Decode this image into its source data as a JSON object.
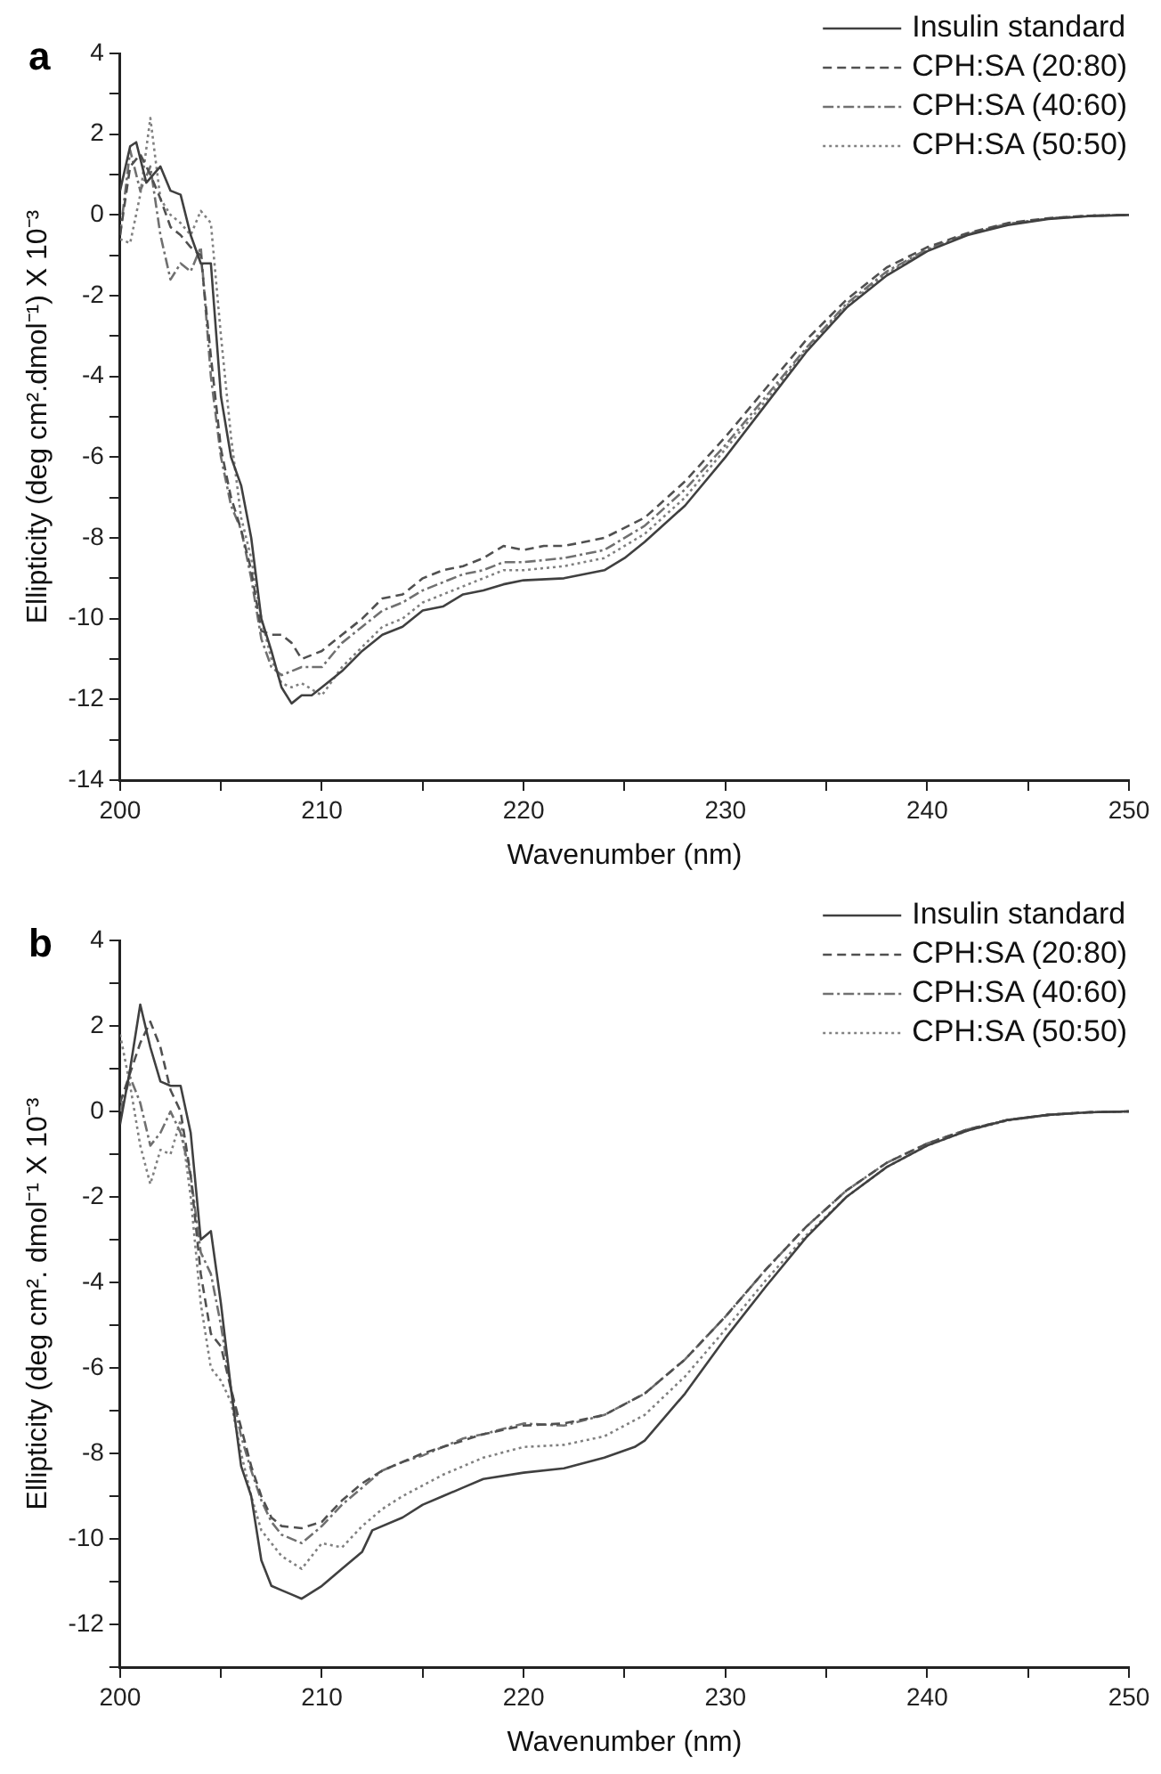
{
  "chart_data": [
    {
      "type": "line",
      "title": "a",
      "xlabel": "Wavenumber (nm)",
      "ylabel": "Ellipticity (deg cm².dmol⁻¹) X 10⁻³",
      "legend": "top right",
      "grid": false,
      "marker": "none",
      "xlim": [
        200,
        250
      ],
      "xticks": [
        200,
        {
          "value": 205,
          "label": null
        },
        210,
        {
          "value": 215,
          "label": null
        },
        220,
        {
          "value": 225,
          "label": null
        },
        230,
        {
          "value": 235,
          "label": null
        },
        240,
        {
          "value": 245,
          "label": null
        },
        250
      ],
      "ylim": [
        -14,
        4
      ],
      "yticks": [
        -14,
        {
          "value": -13,
          "label": null
        },
        -12,
        {
          "value": -11,
          "label": null
        },
        -10,
        {
          "value": -9,
          "label": null
        },
        -8,
        {
          "value": -7,
          "label": null
        },
        -6,
        {
          "value": -5,
          "label": null
        },
        -4,
        {
          "value": -3,
          "label": null
        },
        -2,
        {
          "value": -1,
          "label": null
        },
        0,
        {
          "value": 1,
          "label": null
        },
        2,
        {
          "value": 3,
          "label": null
        },
        4
      ],
      "series": [
        {
          "name": "Insulin standard",
          "color": "#404040",
          "line_style": "solid",
          "x": [
            200,
            200.5,
            200.8,
            201.3,
            202,
            202.5,
            203,
            203.5,
            204,
            204.5,
            205,
            205.5,
            206,
            206.5,
            207,
            207.5,
            208,
            208.5,
            209,
            209.5,
            210,
            211,
            212,
            213,
            214,
            215,
            216,
            217,
            218,
            219,
            220,
            222,
            224,
            225,
            226,
            228,
            230,
            232,
            234,
            236,
            238,
            240,
            242,
            244,
            246,
            248,
            250
          ],
          "values": [
            0.6,
            1.7,
            1.8,
            0.8,
            1.2,
            0.6,
            0.5,
            -0.5,
            -1.2,
            -1.2,
            -4.5,
            -6,
            -6.7,
            -8,
            -10,
            -10.8,
            -11.7,
            -12.1,
            -11.9,
            -11.9,
            -11.7,
            -11.3,
            -10.8,
            -10.4,
            -10.2,
            -9.8,
            -9.7,
            -9.4,
            -9.3,
            -9.15,
            -9.05,
            -9,
            -8.8,
            -8.5,
            -8.1,
            -7.2,
            -6,
            -4.7,
            -3.4,
            -2.3,
            -1.5,
            -0.9,
            -0.5,
            -0.25,
            -0.1,
            -0.03,
            0
          ]
        },
        {
          "name": "CPH:SA (20:80)",
          "color": "#505050",
          "line_style": "dashed",
          "x": [
            200,
            200.5,
            201,
            201.5,
            202,
            202.5,
            203,
            203.5,
            204,
            204.5,
            205,
            205.5,
            206,
            206.5,
            207,
            207.5,
            208,
            208.5,
            209,
            210,
            211,
            212,
            213,
            214,
            215,
            216,
            217,
            218,
            219,
            220,
            221,
            222,
            224,
            226,
            228,
            230,
            232,
            234,
            236,
            238,
            240,
            242,
            244,
            246,
            248,
            250
          ],
          "values": [
            -0.5,
            1.2,
            1.5,
            1,
            0.4,
            -0.3,
            -0.5,
            -0.8,
            -1,
            -3.5,
            -5.8,
            -7,
            -7.8,
            -8.8,
            -10.3,
            -10.4,
            -10.4,
            -10.6,
            -11,
            -10.8,
            -10.4,
            -10,
            -9.5,
            -9.4,
            -9,
            -8.8,
            -8.7,
            -8.5,
            -8.2,
            -8.3,
            -8.2,
            -8.2,
            -8,
            -7.5,
            -6.6,
            -5.5,
            -4.3,
            -3.1,
            -2.1,
            -1.3,
            -0.8,
            -0.45,
            -0.2,
            -0.08,
            -0.02,
            0
          ]
        },
        {
          "name": "CPH:SA (40:60)",
          "color": "#707070",
          "line_style": "dashdot",
          "x": [
            200,
            200.5,
            201,
            201.5,
            202,
            202.5,
            203,
            203.5,
            204,
            204.5,
            205,
            205.5,
            206,
            206.5,
            207,
            207.5,
            208,
            208.5,
            209,
            210,
            211,
            212,
            213,
            214,
            215,
            216,
            217,
            218,
            219,
            220,
            222,
            224,
            226,
            228,
            230,
            232,
            234,
            236,
            238,
            240,
            242,
            244,
            246,
            248,
            250
          ],
          "values": [
            -0.5,
            1.6,
            0.6,
            1.2,
            -0.5,
            -1.6,
            -1.2,
            -1.4,
            -0.8,
            -4,
            -6,
            -7.2,
            -7.8,
            -9,
            -10.5,
            -11.2,
            -11.4,
            -11.3,
            -11.2,
            -11.2,
            -10.6,
            -10.2,
            -9.8,
            -9.6,
            -9.3,
            -9.1,
            -8.9,
            -8.8,
            -8.6,
            -8.6,
            -8.5,
            -8.3,
            -7.7,
            -6.8,
            -5.7,
            -4.5,
            -3.3,
            -2.2,
            -1.4,
            -0.85,
            -0.47,
            -0.22,
            -0.09,
            -0.02,
            0
          ]
        },
        {
          "name": "CPH:SA (50:50)",
          "color": "#808080",
          "line_style": "dotted",
          "x": [
            200,
            200.5,
            201,
            201.5,
            202,
            202.5,
            203,
            203.5,
            204,
            204.5,
            205,
            205.5,
            206,
            206.5,
            207,
            207.5,
            208,
            208.5,
            209,
            210,
            211,
            212,
            213,
            214,
            215,
            216,
            217,
            218,
            219,
            220,
            222,
            224,
            226,
            228,
            230,
            232,
            234,
            236,
            238,
            240,
            242,
            244,
            246,
            248,
            250
          ],
          "values": [
            -0.6,
            -0.7,
            0.5,
            2.4,
            0.4,
            0,
            -0.2,
            -0.5,
            0.1,
            -0.2,
            -3,
            -5.5,
            -7.5,
            -8.5,
            -10,
            -11,
            -11.6,
            -11.7,
            -11.6,
            -11.9,
            -11.2,
            -10.7,
            -10.2,
            -10,
            -9.6,
            -9.4,
            -9.2,
            -9,
            -8.8,
            -8.8,
            -8.7,
            -8.5,
            -7.9,
            -7,
            -5.8,
            -4.6,
            -3.35,
            -2.25,
            -1.45,
            -0.87,
            -0.48,
            -0.23,
            -0.09,
            -0.02,
            0
          ]
        }
      ]
    },
    {
      "type": "line",
      "title": "b",
      "xlabel": "Wavenumber (nm)",
      "ylabel": "Ellipticity (deg cm². dmol⁻¹ X 10⁻³",
      "legend": "top right",
      "grid": false,
      "marker": "none",
      "xlim": [
        200,
        250
      ],
      "xticks": [
        200,
        {
          "value": 205,
          "label": null
        },
        210,
        {
          "value": 215,
          "label": null
        },
        220,
        {
          "value": 225,
          "label": null
        },
        230,
        {
          "value": 235,
          "label": null
        },
        240,
        {
          "value": 245,
          "label": null
        },
        250
      ],
      "ylim": [
        -13,
        4
      ],
      "yticks": [
        {
          "value": -13,
          "label": null
        },
        -12,
        {
          "value": -11,
          "label": null
        },
        -10,
        {
          "value": -9,
          "label": null
        },
        -8,
        {
          "value": -7,
          "label": null
        },
        -6,
        {
          "value": -5,
          "label": null
        },
        -4,
        {
          "value": -3,
          "label": null
        },
        -2,
        {
          "value": -1,
          "label": null
        },
        0,
        {
          "value": 1,
          "label": null
        },
        2,
        {
          "value": 3,
          "label": null
        },
        4
      ],
      "series": [
        {
          "name": "Insulin standard",
          "color": "#404040",
          "line_style": "solid",
          "x": [
            200,
            200.5,
            201,
            201.5,
            202,
            202.5,
            203,
            203.5,
            204,
            204.5,
            205,
            205.5,
            206,
            206.5,
            207,
            207.5,
            208,
            208.5,
            209,
            210,
            211,
            212,
            212.5,
            214,
            215,
            216,
            217,
            218,
            220,
            222,
            224,
            225.5,
            226,
            228,
            230,
            232,
            234,
            236,
            238,
            240,
            242,
            244,
            246,
            248,
            250
          ],
          "values": [
            -0.3,
            1,
            2.5,
            1.5,
            0.7,
            0.6,
            0.6,
            -0.5,
            -3,
            -2.8,
            -4.5,
            -6.5,
            -8.3,
            -9,
            -10.5,
            -11.1,
            -11.2,
            -11.3,
            -11.4,
            -11.1,
            -10.7,
            -10.3,
            -9.8,
            -9.5,
            -9.2,
            -9,
            -8.8,
            -8.6,
            -8.45,
            -8.35,
            -8.1,
            -7.85,
            -7.7,
            -6.6,
            -5.3,
            -4.1,
            -2.95,
            -2,
            -1.3,
            -0.8,
            -0.45,
            -0.2,
            -0.08,
            -0.02,
            0
          ]
        },
        {
          "name": "CPH:SA (20:80)",
          "color": "#505050",
          "line_style": "dashed",
          "x": [
            200,
            200.5,
            201,
            201.5,
            202,
            202.5,
            203,
            203.5,
            204,
            204.5,
            205,
            205.5,
            206,
            206.5,
            207,
            207.5,
            208,
            209,
            210,
            211,
            212,
            213,
            214,
            215,
            216,
            217,
            218,
            220,
            222,
            224,
            226,
            228,
            230,
            232,
            234,
            236,
            238,
            240,
            242,
            244,
            246,
            248,
            250
          ],
          "values": [
            0.2,
            0.9,
            1.6,
            2.1,
            1.5,
            0.5,
            0,
            -1.5,
            -3.8,
            -5.2,
            -5.5,
            -6.5,
            -7.4,
            -8.3,
            -9,
            -9.5,
            -9.7,
            -9.75,
            -9.6,
            -9.1,
            -8.7,
            -8.4,
            -8.2,
            -8,
            -7.85,
            -7.7,
            -7.55,
            -7.35,
            -7.3,
            -7.1,
            -6.6,
            -5.8,
            -4.8,
            -3.7,
            -2.7,
            -1.85,
            -1.2,
            -0.75,
            -0.42,
            -0.2,
            -0.08,
            -0.02,
            0
          ]
        },
        {
          "name": "CPH:SA (40:60)",
          "color": "#707070",
          "line_style": "dashdot",
          "x": [
            200,
            200.5,
            201,
            201.5,
            202,
            202.5,
            203,
            203.5,
            204,
            204.5,
            205,
            205.5,
            206,
            206.5,
            207,
            207.5,
            208,
            209,
            210,
            211,
            212,
            213,
            214,
            215,
            216,
            217,
            218,
            220,
            222,
            224,
            226,
            228,
            230,
            232,
            234,
            236,
            238,
            240,
            242,
            244,
            246,
            248,
            250
          ],
          "values": [
            0,
            0.8,
            0.2,
            -0.8,
            -0.5,
            0,
            -0.5,
            -1.5,
            -3.3,
            -3.8,
            -5,
            -6.5,
            -7.6,
            -8.4,
            -9.1,
            -9.6,
            -9.9,
            -10.1,
            -9.7,
            -9.2,
            -8.8,
            -8.4,
            -8.2,
            -8.05,
            -7.85,
            -7.65,
            -7.55,
            -7.3,
            -7.35,
            -7.1,
            -6.6,
            -5.8,
            -4.8,
            -3.7,
            -2.7,
            -1.85,
            -1.2,
            -0.75,
            -0.42,
            -0.2,
            -0.08,
            -0.02,
            0
          ]
        },
        {
          "name": "CPH:SA (50:50)",
          "color": "#808080",
          "line_style": "dotted",
          "x": [
            200,
            200.5,
            201,
            201.5,
            202,
            202.5,
            203,
            203.5,
            204,
            204.5,
            205,
            205.5,
            206,
            206.5,
            207,
            208,
            209,
            210,
            211,
            212,
            213,
            214,
            215,
            216,
            217,
            218,
            220,
            222,
            224,
            226,
            228,
            230,
            232,
            234,
            236,
            238,
            240,
            242,
            244,
            246,
            248,
            250
          ],
          "values": [
            1.8,
            0.6,
            -0.8,
            -1.7,
            -0.9,
            -1,
            -0.2,
            -2,
            -4.5,
            -6,
            -6.3,
            -6.8,
            -8,
            -9,
            -9.8,
            -10.4,
            -10.7,
            -10.1,
            -10.2,
            -9.7,
            -9.3,
            -9,
            -8.75,
            -8.5,
            -8.3,
            -8.1,
            -7.85,
            -7.8,
            -7.6,
            -7.1,
            -6.2,
            -5.1,
            -3.95,
            -2.9,
            -2,
            -1.3,
            -0.8,
            -0.45,
            -0.21,
            -0.08,
            -0.02,
            0
          ]
        }
      ]
    }
  ]
}
